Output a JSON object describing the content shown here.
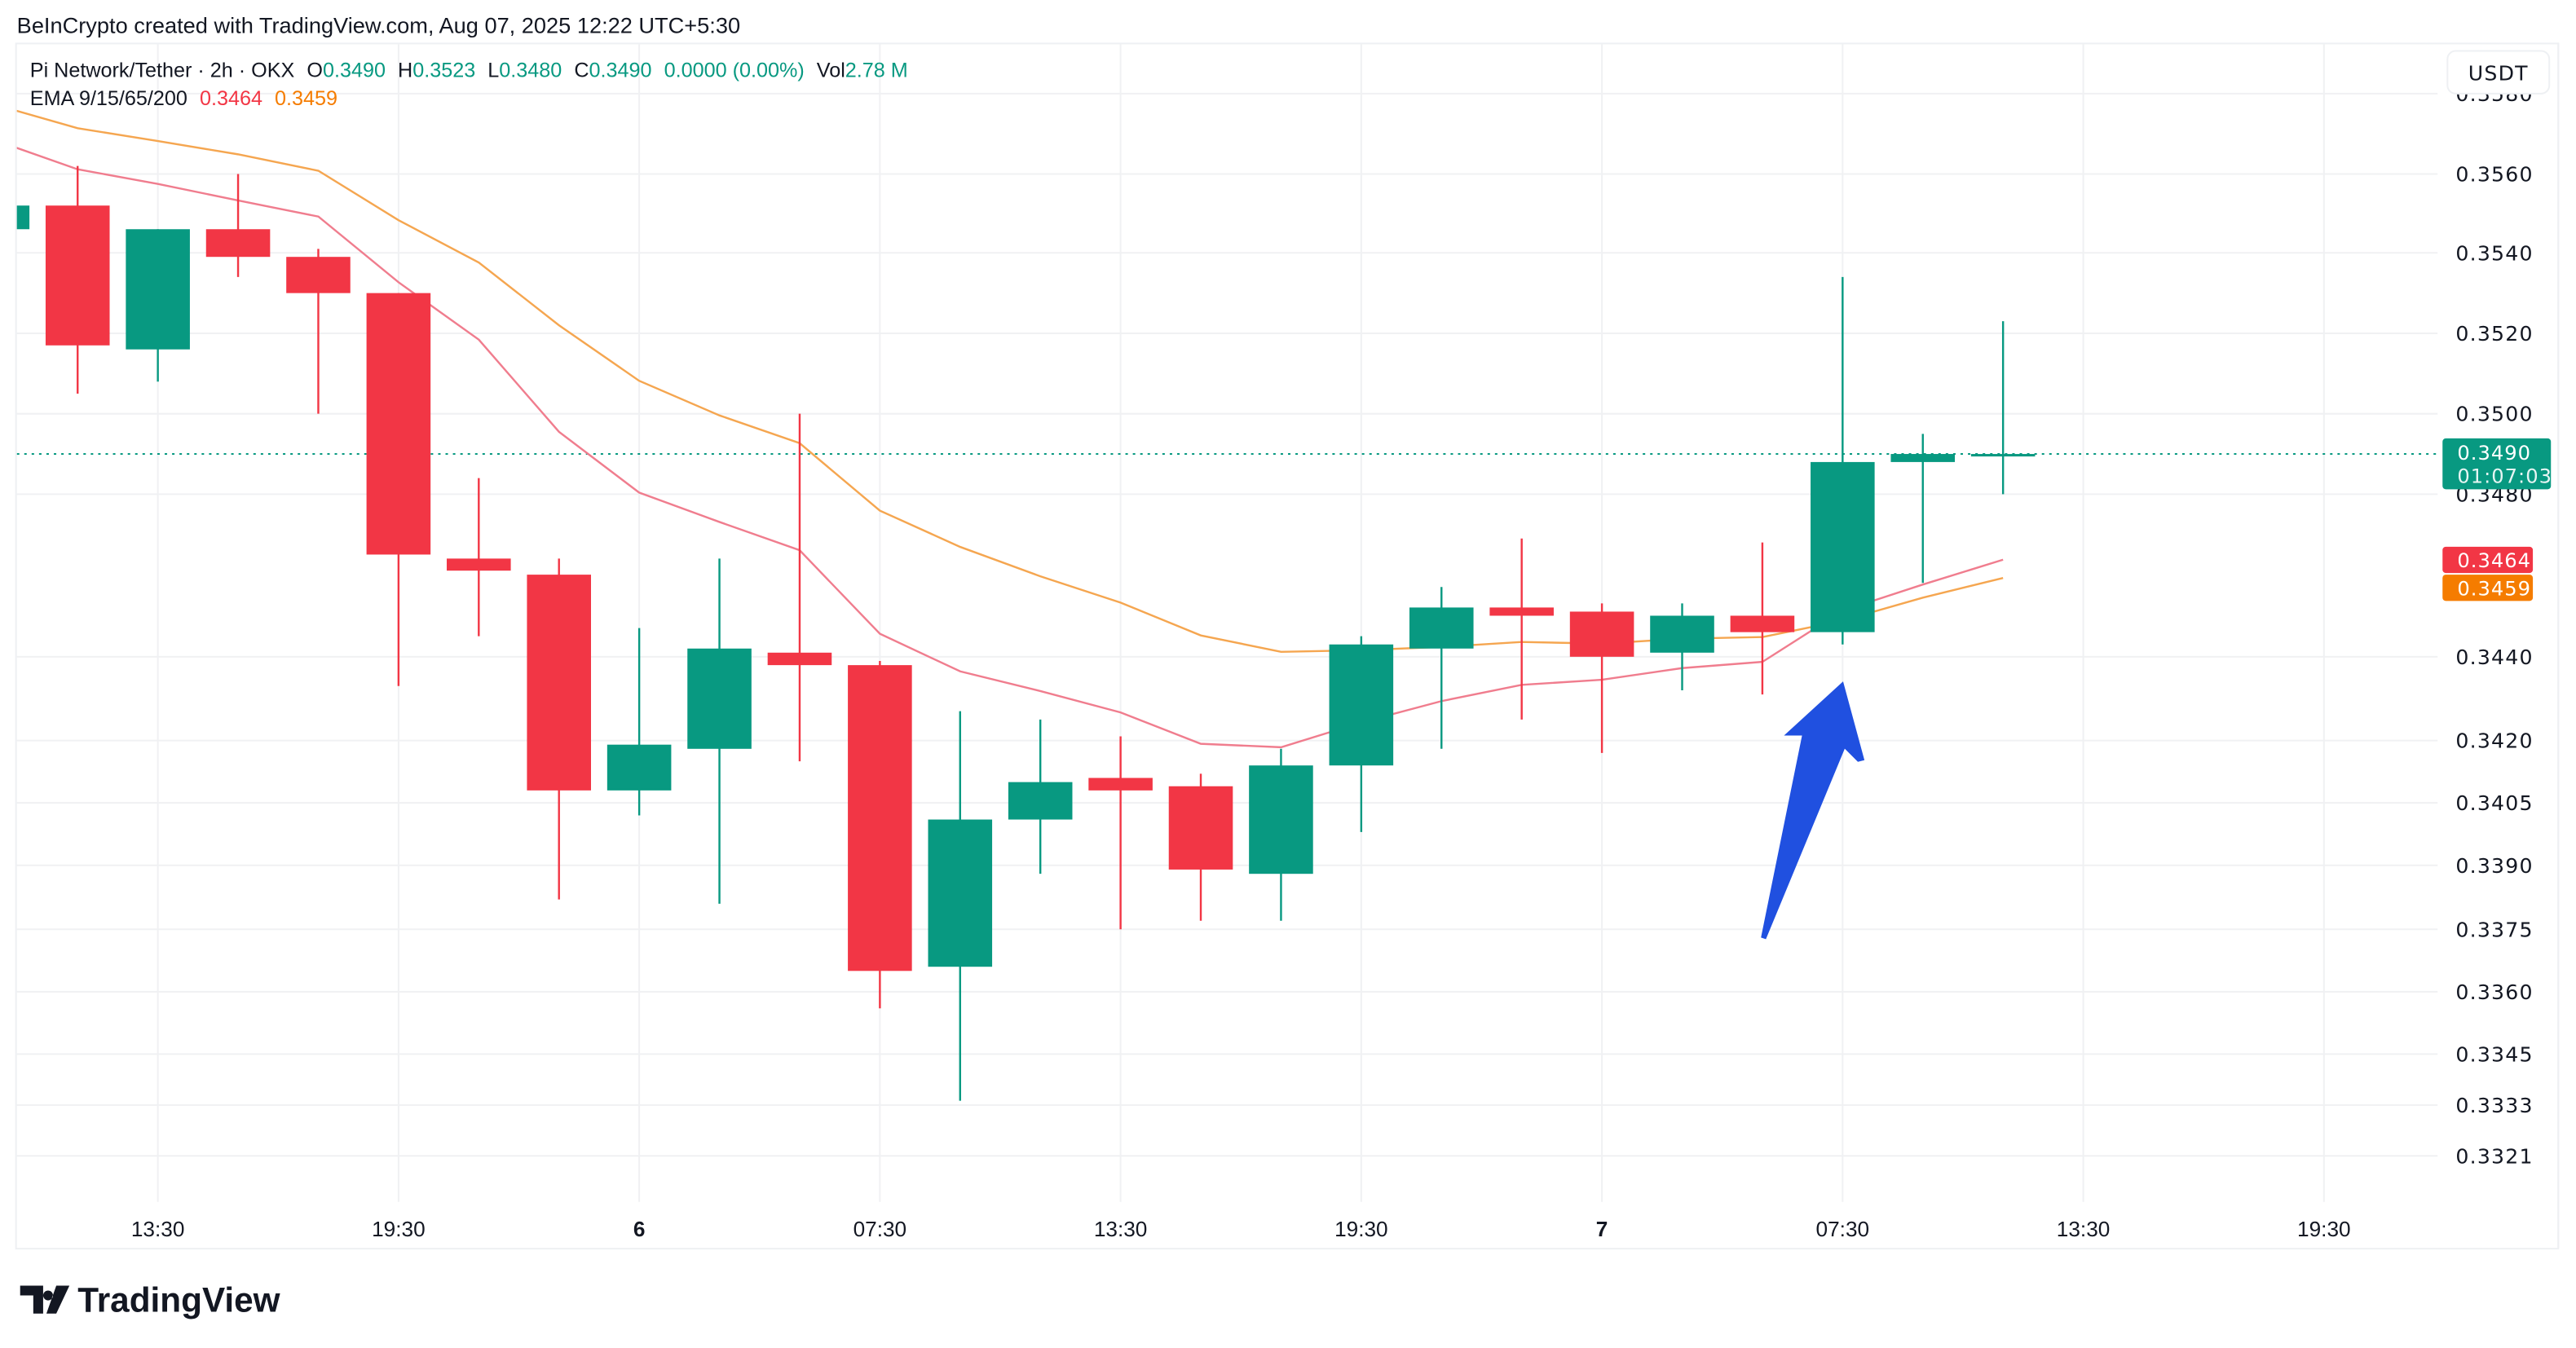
{
  "header": {
    "attribution": "BeInCrypto created with TradingView.com, Aug 07, 2025 12:22 UTC+5:30"
  },
  "legend": {
    "symbol": "Pi Network/Tether · 2h · OKX",
    "o_label": "O",
    "o_value": "0.3490",
    "h_label": "H",
    "h_value": "0.3523",
    "l_label": "L",
    "l_value": "0.3480",
    "c_label": "C",
    "c_value": "0.3490",
    "change": "0.0000 (0.00%)",
    "vol_label": "Vol",
    "vol_value": "2.78 M",
    "ema_label": "EMA 9/15/65/200",
    "ema_fast_value": "0.3464",
    "ema_slow_value": "0.3459"
  },
  "currency_button": "USDT",
  "price_labels": {
    "last_price": "0.3490",
    "countdown": "01:07:03",
    "ema_fast": "0.3464",
    "ema_slow": "0.3459"
  },
  "logo": {
    "text": "TradingView"
  },
  "colors": {
    "up": "#089981",
    "down": "#F23645",
    "ema_fast": "#F07D8E",
    "ema_slow": "#F5A650",
    "ema_slow_label": "#F57C00",
    "arrow": "#2050E0",
    "grid": "#F0F1F3"
  },
  "chart_data": {
    "type": "candlestick",
    "title": "Pi Network/Tether · 2h · OKX",
    "ylabel": "USDT",
    "ylim": [
      0.3315,
      0.3585
    ],
    "y_ticks": [
      "0.3580",
      "0.3560",
      "0.3540",
      "0.3520",
      "0.3500",
      "0.3480",
      "0.3440",
      "0.3420",
      "0.3405",
      "0.3390",
      "0.3375",
      "0.3360",
      "0.3345",
      "0.3333",
      "0.3321"
    ],
    "x_ticks": [
      {
        "label": "13:30",
        "bold": false
      },
      {
        "label": "19:30",
        "bold": false
      },
      {
        "label": "6",
        "bold": true
      },
      {
        "label": "07:30",
        "bold": false
      },
      {
        "label": "13:30",
        "bold": false
      },
      {
        "label": "19:30",
        "bold": false
      },
      {
        "label": "7",
        "bold": true
      },
      {
        "label": "07:30",
        "bold": false
      },
      {
        "label": "13:30",
        "bold": false
      },
      {
        "label": "19:30",
        "bold": false
      }
    ],
    "candles": [
      {
        "t": "Aug 5 09:30",
        "o": 0.3546,
        "h": 0.3552,
        "l": 0.3546,
        "c": 0.3552
      },
      {
        "t": "Aug 5 11:30",
        "o": 0.3552,
        "h": 0.3562,
        "l": 0.3505,
        "c": 0.3517
      },
      {
        "t": "Aug 5 13:30",
        "o": 0.3516,
        "h": 0.3546,
        "l": 0.3508,
        "c": 0.3546
      },
      {
        "t": "Aug 5 15:30",
        "o": 0.3546,
        "h": 0.356,
        "l": 0.3534,
        "c": 0.3539
      },
      {
        "t": "Aug 5 17:30",
        "o": 0.3539,
        "h": 0.3541,
        "l": 0.35,
        "c": 0.353
      },
      {
        "t": "Aug 5 19:30",
        "o": 0.353,
        "h": 0.353,
        "l": 0.3433,
        "c": 0.3465
      },
      {
        "t": "Aug 5 21:30",
        "o": 0.3464,
        "h": 0.3484,
        "l": 0.3445,
        "c": 0.3461
      },
      {
        "t": "Aug 5 23:30",
        "o": 0.346,
        "h": 0.3464,
        "l": 0.3382,
        "c": 0.3408
      },
      {
        "t": "Aug 6 01:30",
        "o": 0.3408,
        "h": 0.3447,
        "l": 0.3402,
        "c": 0.3419
      },
      {
        "t": "Aug 6 03:30",
        "o": 0.3418,
        "h": 0.3464,
        "l": 0.3381,
        "c": 0.3442
      },
      {
        "t": "Aug 6 05:30",
        "o": 0.3441,
        "h": 0.35,
        "l": 0.3415,
        "c": 0.3438
      },
      {
        "t": "Aug 6 07:30",
        "o": 0.3438,
        "h": 0.3439,
        "l": 0.3356,
        "c": 0.3365
      },
      {
        "t": "Aug 6 09:30",
        "o": 0.3366,
        "h": 0.3427,
        "l": 0.3334,
        "c": 0.3401
      },
      {
        "t": "Aug 6 11:30",
        "o": 0.3401,
        "h": 0.3425,
        "l": 0.3388,
        "c": 0.341
      },
      {
        "t": "Aug 6 13:30",
        "o": 0.3411,
        "h": 0.3421,
        "l": 0.3375,
        "c": 0.3408
      },
      {
        "t": "Aug 6 15:30",
        "o": 0.3409,
        "h": 0.3412,
        "l": 0.3377,
        "c": 0.3389
      },
      {
        "t": "Aug 6 17:30",
        "o": 0.3388,
        "h": 0.3418,
        "l": 0.3377,
        "c": 0.3414
      },
      {
        "t": "Aug 6 19:30",
        "o": 0.3414,
        "h": 0.3445,
        "l": 0.3398,
        "c": 0.3443
      },
      {
        "t": "Aug 6 21:30",
        "o": 0.3442,
        "h": 0.3457,
        "l": 0.3418,
        "c": 0.3452
      },
      {
        "t": "Aug 6 23:30",
        "o": 0.3452,
        "h": 0.3469,
        "l": 0.3425,
        "c": 0.345
      },
      {
        "t": "Aug 7 01:30",
        "o": 0.3451,
        "h": 0.3453,
        "l": 0.3417,
        "c": 0.344
      },
      {
        "t": "Aug 7 03:30",
        "o": 0.3441,
        "h": 0.3453,
        "l": 0.3432,
        "c": 0.345
      },
      {
        "t": "Aug 7 05:30",
        "o": 0.345,
        "h": 0.3468,
        "l": 0.3431,
        "c": 0.3446
      },
      {
        "t": "Aug 7 07:30",
        "o": 0.3446,
        "h": 0.3534,
        "l": 0.3443,
        "c": 0.3488
      },
      {
        "t": "Aug 7 09:30",
        "o": 0.3488,
        "h": 0.3495,
        "l": 0.3458,
        "c": 0.349
      },
      {
        "t": "Aug 7 11:30",
        "o": 0.349,
        "h": 0.3523,
        "l": 0.348,
        "c": 0.349
      }
    ],
    "series": [
      {
        "name": "EMA fast",
        "values": [
          0.35682,
          0.35612,
          0.35575,
          0.35533,
          0.35492,
          0.35327,
          0.35184,
          0.34955,
          0.34804,
          0.34731,
          0.34661,
          0.34456,
          0.34365,
          0.34318,
          0.34267,
          0.34192,
          0.34184,
          0.34243,
          0.34294,
          0.34333,
          0.34345,
          0.34373,
          0.34388,
          0.34512,
          0.34576,
          0.34637
        ]
      },
      {
        "name": "EMA slow",
        "values": [
          0.35771,
          0.35714,
          0.35682,
          0.35649,
          0.35608,
          0.35483,
          0.35376,
          0.3522,
          0.35082,
          0.34996,
          0.34927,
          0.34759,
          0.34669,
          0.34596,
          0.34532,
          0.34452,
          0.34412,
          0.34416,
          0.34424,
          0.34436,
          0.34432,
          0.34444,
          0.34448,
          0.34488,
          0.34544,
          0.34592
        ]
      }
    ],
    "last_price": 0.349
  }
}
